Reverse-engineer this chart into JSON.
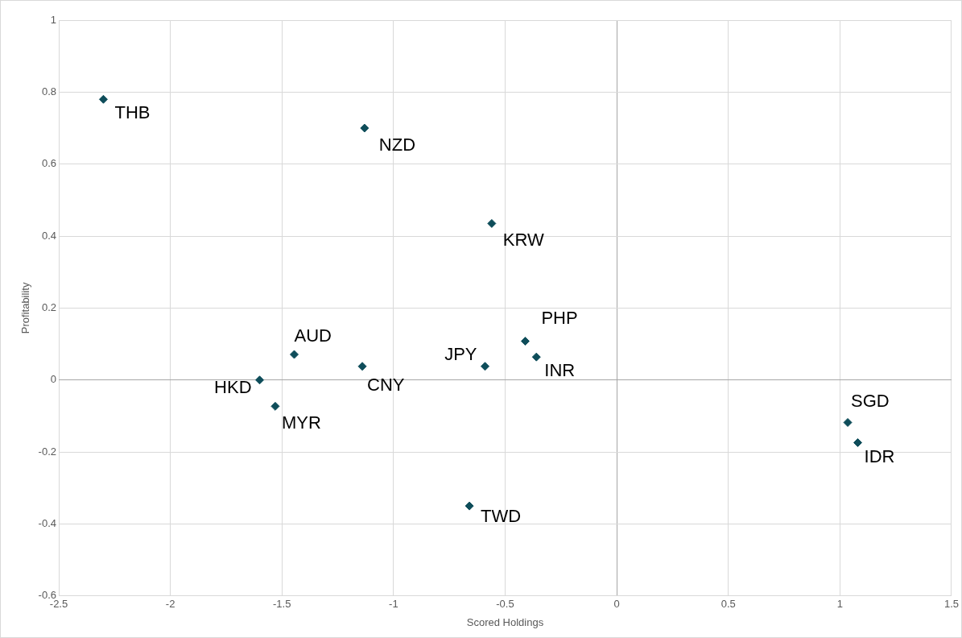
{
  "chart_data": {
    "type": "scatter",
    "xlabel": "Scored Holdings",
    "ylabel": "Profitability",
    "x": [
      -2.3,
      -1.13,
      -0.56,
      -0.41,
      -0.36,
      -0.59,
      -1.14,
      -1.445,
      -1.6,
      -1.53,
      -0.66,
      1.035,
      1.08
    ],
    "values": [
      0.78,
      0.7,
      0.435,
      0.108,
      0.064,
      0.038,
      0.038,
      0.071,
      0.0,
      -0.073,
      -0.35,
      -0.118,
      -0.174
    ],
    "color": "#0e4d5a",
    "marker": "diamond",
    "grid": true,
    "legend": false,
    "xlim": [
      -2.5,
      1.5
    ],
    "xticks": [
      -2.5,
      -2,
      -1.5,
      -1,
      -0.5,
      0,
      0.5,
      1,
      1.5
    ],
    "ylim": [
      -0.6,
      1
    ],
    "yticks": [
      -0.6,
      -0.4,
      -0.2,
      0,
      0.2,
      0.4,
      0.6,
      0.8,
      1
    ],
    "annotations": [
      {
        "text": "THB",
        "x": -2.3,
        "y": 0.78
      },
      {
        "text": "NZD",
        "x": -1.13,
        "y": 0.7
      },
      {
        "text": "KRW",
        "x": -0.56,
        "y": 0.435
      },
      {
        "text": "PHP",
        "x": -0.41,
        "y": 0.108
      },
      {
        "text": "INR",
        "x": -0.36,
        "y": 0.064
      },
      {
        "text": "JPY",
        "x": -0.59,
        "y": 0.038
      },
      {
        "text": "CNY",
        "x": -1.14,
        "y": 0.038
      },
      {
        "text": "AUD",
        "x": -1.445,
        "y": 0.071
      },
      {
        "text": "HKD",
        "x": -1.6,
        "y": 0.0
      },
      {
        "text": "MYR",
        "x": -1.53,
        "y": -0.073
      },
      {
        "text": "TWD",
        "x": -0.66,
        "y": -0.35
      },
      {
        "text": "SGD",
        "x": 1.035,
        "y": -0.118
      },
      {
        "text": "IDR",
        "x": 1.08,
        "y": -0.174
      }
    ]
  }
}
